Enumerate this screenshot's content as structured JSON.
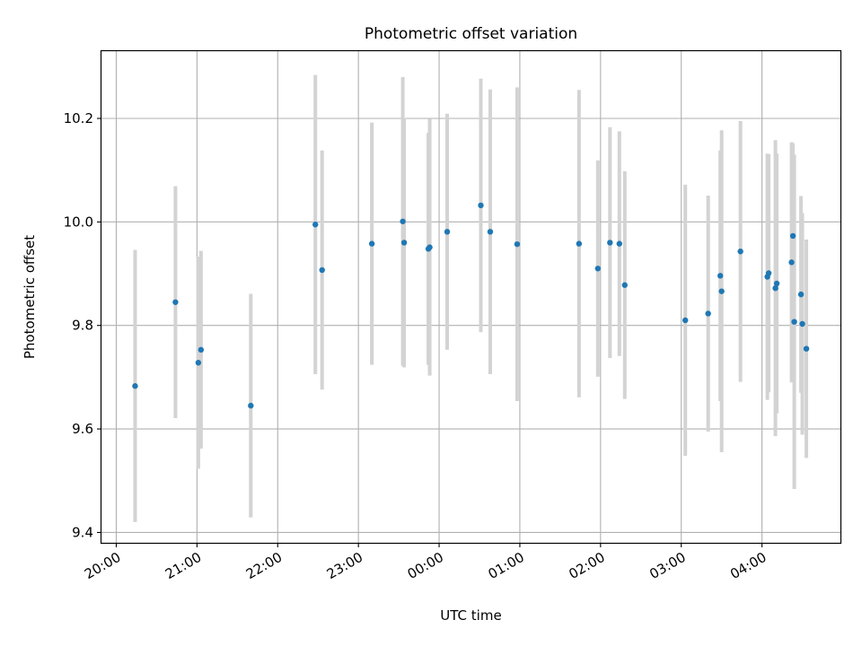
{
  "chart_data": {
    "type": "scatter",
    "title": "Photometric offset variation",
    "xlabel": "UTC time",
    "ylabel": "Photometric offset",
    "x_ticks": [
      "20:00",
      "21:00",
      "22:00",
      "23:00",
      "00:00",
      "01:00",
      "02:00",
      "03:00",
      "04:00"
    ],
    "y_ticks": [
      "9.4",
      "9.6",
      "9.8",
      "10.0",
      "10.2"
    ],
    "xlim": [
      "19:49",
      "04:59"
    ],
    "ylim": [
      9.38,
      10.33
    ],
    "grid": true,
    "marker_color": "#1f77b4",
    "errorbar_color": "#d3d3d3",
    "points": [
      {
        "x": "20:14",
        "y": 9.683,
        "err": 0.263
      },
      {
        "x": "20:44",
        "y": 9.845,
        "err": 0.224
      },
      {
        "x": "21:01",
        "y": 9.728,
        "err": 0.205
      },
      {
        "x": "21:03",
        "y": 9.753,
        "err": 0.191
      },
      {
        "x": "21:40",
        "y": 9.645,
        "err": 0.216
      },
      {
        "x": "22:28",
        "y": 9.995,
        "err": 0.289
      },
      {
        "x": "22:33",
        "y": 9.907,
        "err": 0.231
      },
      {
        "x": "23:10",
        "y": 9.958,
        "err": 0.234
      },
      {
        "x": "23:33",
        "y": 10.001,
        "err": 0.279
      },
      {
        "x": "23:34",
        "y": 9.96,
        "err": 0.241
      },
      {
        "x": "23:52",
        "y": 9.948,
        "err": 0.224
      },
      {
        "x": "23:53",
        "y": 9.951,
        "err": 0.248
      },
      {
        "x": "00:06",
        "y": 9.981,
        "err": 0.228
      },
      {
        "x": "00:31",
        "y": 10.032,
        "err": 0.245
      },
      {
        "x": "00:38",
        "y": 9.981,
        "err": 0.275
      },
      {
        "x": "00:58",
        "y": 9.957,
        "err": 0.303
      },
      {
        "x": "01:44",
        "y": 9.958,
        "err": 0.297
      },
      {
        "x": "01:58",
        "y": 9.91,
        "err": 0.209
      },
      {
        "x": "02:07",
        "y": 9.96,
        "err": 0.223
      },
      {
        "x": "02:14",
        "y": 9.958,
        "err": 0.217
      },
      {
        "x": "02:18",
        "y": 9.878,
        "err": 0.22
      },
      {
        "x": "03:03",
        "y": 9.81,
        "err": 0.262
      },
      {
        "x": "03:20",
        "y": 9.823,
        "err": 0.228
      },
      {
        "x": "03:29",
        "y": 9.896,
        "err": 0.242
      },
      {
        "x": "03:30",
        "y": 9.866,
        "err": 0.311
      },
      {
        "x": "03:44",
        "y": 9.943,
        "err": 0.252
      },
      {
        "x": "04:04",
        "y": 9.894,
        "err": 0.238
      },
      {
        "x": "04:05",
        "y": 9.901,
        "err": 0.23
      },
      {
        "x": "04:10",
        "y": 9.872,
        "err": 0.286
      },
      {
        "x": "04:11",
        "y": 9.881,
        "err": 0.251
      },
      {
        "x": "04:22",
        "y": 9.922,
        "err": 0.232
      },
      {
        "x": "04:23",
        "y": 9.973,
        "err": 0.179
      },
      {
        "x": "04:24",
        "y": 9.807,
        "err": 0.323
      },
      {
        "x": "04:29",
        "y": 9.86,
        "err": 0.19
      },
      {
        "x": "04:30",
        "y": 9.803,
        "err": 0.214
      },
      {
        "x": "04:33",
        "y": 9.755,
        "err": 0.211
      }
    ]
  }
}
